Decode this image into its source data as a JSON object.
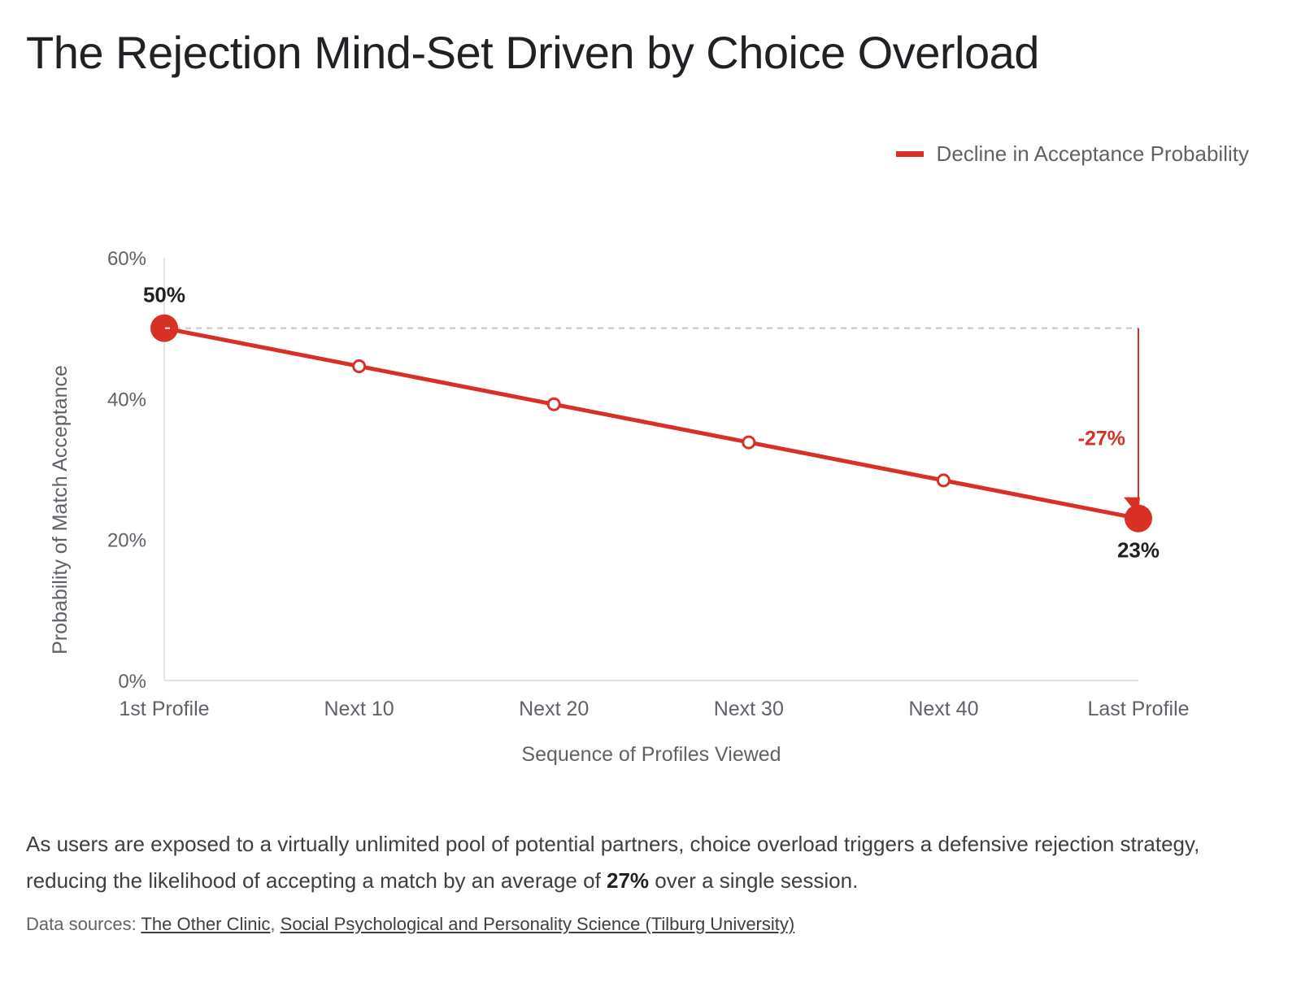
{
  "title": "The Rejection Mind-Set Driven by Choice Overload",
  "legend": {
    "label": "Decline in Acceptance Probability",
    "color": "#d93025"
  },
  "chart_data": {
    "type": "line",
    "categories": [
      "1st Profile",
      "Next 10",
      "Next 20",
      "Next 30",
      "Next 40",
      "Last Profile"
    ],
    "series": [
      {
        "name": "Decline in Acceptance Probability",
        "values": [
          50,
          44.6,
          39.2,
          33.8,
          28.4,
          23
        ]
      }
    ],
    "xlabel": "Sequence of Profiles Viewed",
    "ylabel": "Probability of Match Acceptance",
    "ylim": [
      0,
      60
    ],
    "yticks": [
      0,
      20,
      40,
      60
    ],
    "ytick_labels": [
      "0%",
      "20%",
      "40%",
      "60%"
    ],
    "data_labels": {
      "first": "50%",
      "last": "23%"
    },
    "annotation": {
      "label": "-27%",
      "from": 50,
      "to": 23
    },
    "reference_line_value": 50,
    "grid": false
  },
  "description": {
    "text_before": "As users are exposed to a virtually unlimited pool of potential partners, choice overload triggers a defensive rejection strategy, reducing the likelihood of accepting a match by an average of ",
    "bold": "27%",
    "text_after": " over a single session."
  },
  "sources": {
    "prefix": "Data sources: ",
    "link1": "The Other Clinic",
    "separator": ", ",
    "link2": "Social Psychological and Personality Science (Tilburg University)"
  }
}
